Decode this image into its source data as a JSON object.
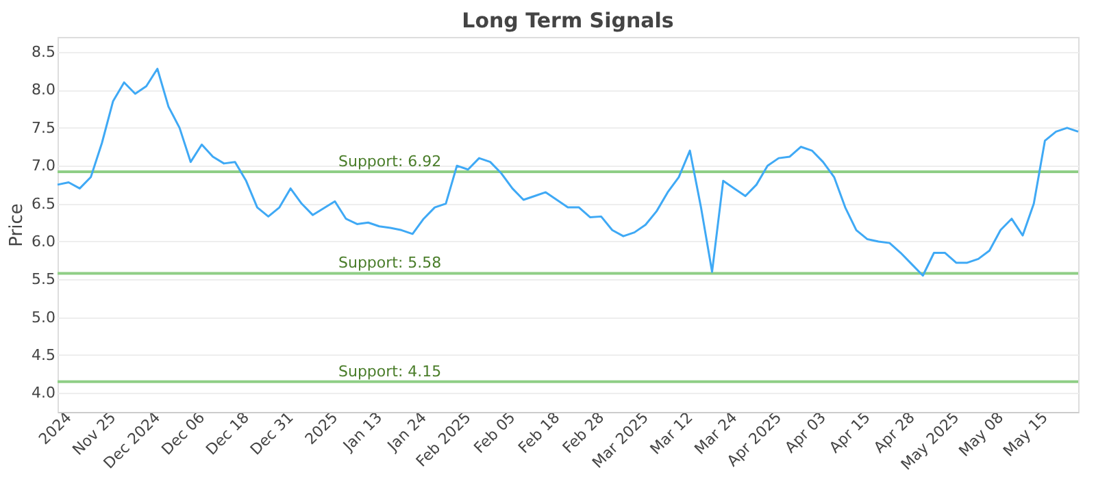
{
  "chart_data": {
    "type": "line",
    "title": "Long Term Signals",
    "ylabel": "Price",
    "categories": [
      null,
      "2024",
      null,
      null,
      null,
      "Nov 25",
      null,
      null,
      null,
      "Dec 2024",
      null,
      null,
      null,
      "Dec 06",
      null,
      null,
      null,
      "Dec 18",
      null,
      null,
      null,
      "Dec 31",
      null,
      null,
      null,
      "2025",
      null,
      null,
      null,
      "Jan 13",
      null,
      null,
      null,
      "Jan 24",
      null,
      null,
      null,
      "Feb 2025",
      null,
      null,
      null,
      "Feb 05",
      null,
      null,
      null,
      "Feb 18",
      null,
      null,
      null,
      "Feb 28",
      null,
      null,
      null,
      "Mar 2025",
      null,
      null,
      null,
      "Mar 12",
      null,
      null,
      null,
      "Mar 24",
      null,
      null,
      null,
      "Apr 2025",
      null,
      null,
      null,
      "Apr 03",
      null,
      null,
      null,
      "Apr 15",
      null,
      null,
      null,
      "Apr 28",
      null,
      null,
      null,
      "May 2025",
      null,
      null,
      null,
      "May 08",
      null,
      null,
      null,
      "May 15",
      null,
      null,
      null
    ],
    "series": [
      {
        "color": "#3fa9f5",
        "values": [
          6.75,
          6.78,
          6.7,
          6.85,
          7.3,
          7.85,
          8.1,
          7.95,
          8.05,
          8.28,
          7.78,
          7.5,
          7.05,
          7.28,
          7.12,
          7.03,
          7.05,
          6.8,
          6.45,
          6.33,
          6.45,
          6.7,
          6.5,
          6.35,
          6.44,
          6.53,
          6.3,
          6.23,
          6.25,
          6.2,
          6.18,
          6.15,
          6.1,
          6.3,
          6.45,
          6.5,
          7.0,
          6.95,
          7.1,
          7.05,
          6.9,
          6.7,
          6.55,
          6.6,
          6.65,
          6.55,
          6.45,
          6.45,
          6.32,
          6.33,
          6.15,
          6.07,
          6.12,
          6.22,
          6.4,
          6.65,
          6.85,
          7.2,
          6.45,
          5.6,
          6.8,
          6.7,
          6.6,
          6.75,
          7.0,
          7.1,
          7.12,
          7.25,
          7.2,
          7.05,
          6.85,
          6.45,
          6.15,
          6.03,
          6.0,
          5.98,
          5.85,
          5.7,
          5.55,
          5.85,
          5.85,
          5.72,
          5.72,
          5.77,
          5.88,
          6.15,
          6.3,
          6.08,
          6.5,
          7.33,
          7.45,
          7.5,
          7.45
        ]
      }
    ],
    "ylim": [
      3.75,
      8.7
    ],
    "yticks": [
      {
        "value": 4,
        "label": "4.0"
      },
      4.5,
      {
        "value": 5,
        "label": "5.0"
      },
      5.5,
      {
        "value": 6,
        "label": "6.0"
      },
      6.5,
      {
        "value": 7,
        "label": "7.0"
      },
      7.5,
      {
        "value": 8,
        "label": "8.0"
      },
      8.5
    ],
    "grid": "y",
    "legend": false,
    "marker": "none",
    "line_style": "solid",
    "ref_lines": [
      {
        "axis": "y",
        "value": 6.92,
        "label": "Support: 6.92",
        "color": "#8fce86"
      },
      {
        "axis": "y",
        "value": 5.58,
        "label": "Support: 5.58",
        "color": "#8fce86"
      },
      {
        "axis": "y",
        "value": 4.15,
        "label": "Support: 4.15",
        "color": "#8fce86"
      }
    ]
  }
}
